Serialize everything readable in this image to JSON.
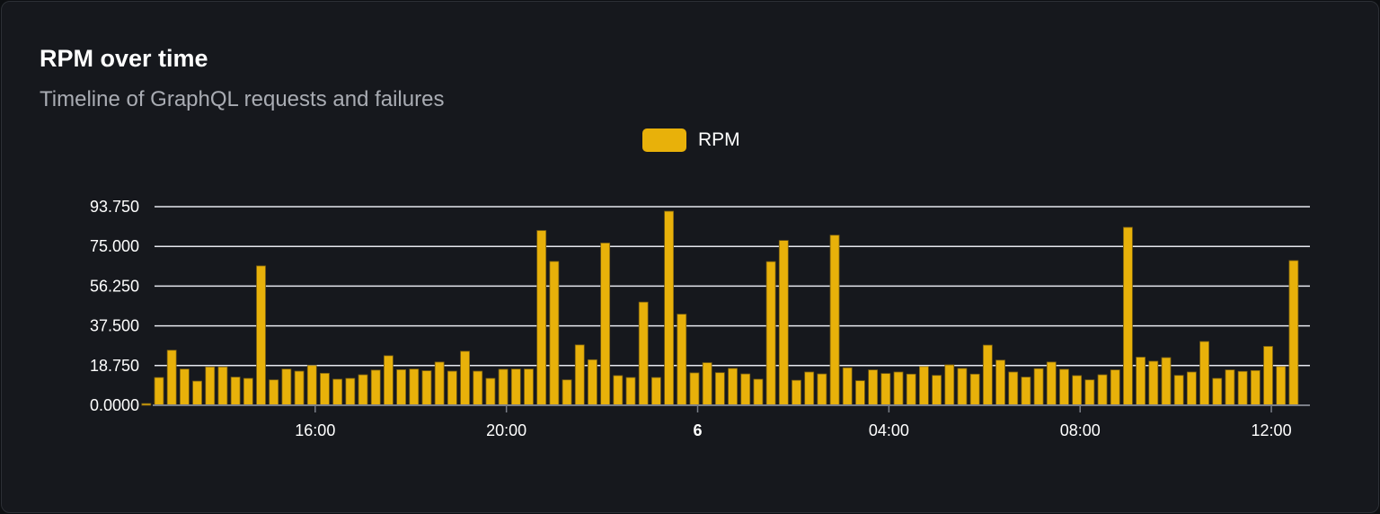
{
  "card": {
    "title": "RPM over time",
    "subtitle": "Timeline of GraphQL requests and failures"
  },
  "chart_data": {
    "type": "bar",
    "title": "RPM over time",
    "subtitle": "Timeline of GraphQL requests and failures",
    "xlabel": "",
    "ylabel": "",
    "legend": {
      "position": "top",
      "entries": [
        "RPM"
      ]
    },
    "series": [
      {
        "name": "RPM",
        "color": "#e8b10a",
        "values": [
          0.8,
          13.1,
          26.0,
          17.1,
          11.4,
          18.1,
          18.1,
          13.3,
          12.7,
          65.8,
          12.0,
          17.1,
          16.1,
          18.8,
          15.1,
          12.3,
          12.7,
          14.4,
          16.6,
          23.4,
          16.8,
          17.1,
          16.3,
          20.4,
          16.1,
          25.5,
          16.1,
          12.7,
          17.0,
          17.1,
          17.1,
          82.5,
          67.9,
          12.0,
          28.5,
          21.5,
          76.6,
          14.0,
          13.1,
          48.7,
          13.1,
          91.6,
          43.0,
          15.3,
          20.1,
          15.4,
          17.4,
          14.8,
          12.3,
          67.8,
          77.8,
          11.8,
          15.7,
          14.8,
          80.3,
          17.7,
          11.6,
          16.7,
          15.0,
          15.7,
          14.7,
          18.3,
          14.1,
          19.1,
          17.4,
          14.7,
          28.4,
          21.3,
          15.7,
          13.3,
          17.3,
          20.4,
          17.0,
          14.0,
          12.0,
          14.4,
          16.7,
          84.0,
          22.7,
          20.8,
          22.5,
          14.1,
          15.7,
          30.1,
          12.7,
          16.7,
          16.0,
          16.4,
          27.8,
          18.3,
          68.3
        ]
      }
    ],
    "x_start": "12:28",
    "interval_minutes": 16,
    "x_ticks": [
      {
        "label": "16:00",
        "time": "16:00",
        "bold": false
      },
      {
        "label": "20:00",
        "time": "20:00",
        "bold": false
      },
      {
        "label": "6",
        "time": "24:00",
        "bold": true
      },
      {
        "label": "04:00",
        "time": "28:00",
        "bold": false
      },
      {
        "label": "08:00",
        "time": "32:00",
        "bold": false
      },
      {
        "label": "12:00",
        "time": "36:00",
        "bold": false
      }
    ],
    "y_ticks": [
      "0.0000",
      "18.750",
      "37.500",
      "56.250",
      "75.000",
      "93.750"
    ],
    "ylim": [
      0,
      93.75
    ],
    "grid": true
  }
}
